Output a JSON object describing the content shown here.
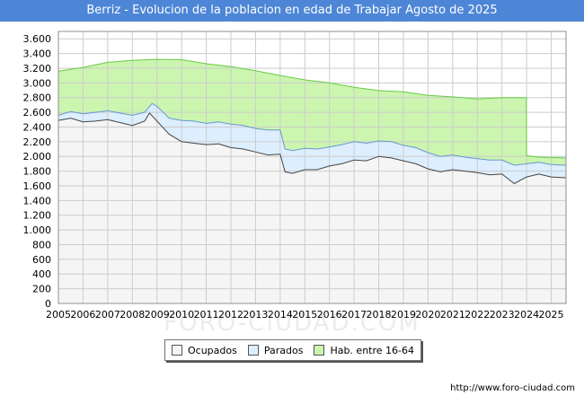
{
  "chart_data": {
    "type": "area",
    "title": "Berriz - Evolucion de la poblacion en edad de Trabajar Agosto de 2025",
    "xlabel": "",
    "ylabel": "",
    "ylim": [
      0,
      3700
    ],
    "grid": true,
    "legend_position": "bottom-center",
    "x_tick_labels": [
      "2005",
      "2006",
      "2007",
      "2008",
      "2009",
      "2010",
      "2011",
      "2012",
      "2013",
      "2014",
      "2015",
      "2016",
      "2017",
      "2018",
      "2019",
      "2020",
      "2021",
      "2022",
      "2023",
      "2024",
      "2025"
    ],
    "y_tick_labels": [
      "0",
      "200",
      "400",
      "600",
      "800",
      "1.000",
      "1.200",
      "1.400",
      "1.600",
      "1.800",
      "2.000",
      "2.200",
      "2.400",
      "2.600",
      "2.800",
      "3.000",
      "3.200",
      "3.400",
      "3.600"
    ],
    "y_ticks": [
      0,
      200,
      400,
      600,
      800,
      1000,
      1200,
      1400,
      1600,
      1800,
      2000,
      2200,
      2400,
      2600,
      2800,
      3000,
      3200,
      3400,
      3600
    ],
    "series": [
      {
        "name": "Hab. entre 16-64",
        "color": "#ccf5b0",
        "line_color": "#66cc44",
        "points": [
          [
            2005.0,
            3160
          ],
          [
            2006.0,
            3210
          ],
          [
            2007.0,
            3280
          ],
          [
            2008.0,
            3305
          ],
          [
            2009.0,
            3320
          ],
          [
            2010.0,
            3315
          ],
          [
            2011.0,
            3260
          ],
          [
            2012.0,
            3220
          ],
          [
            2013.0,
            3165
          ],
          [
            2014.0,
            3100
          ],
          [
            2015.0,
            3040
          ],
          [
            2016.0,
            3000
          ],
          [
            2017.0,
            2940
          ],
          [
            2018.0,
            2895
          ],
          [
            2019.0,
            2880
          ],
          [
            2020.0,
            2830
          ],
          [
            2021.0,
            2810
          ],
          [
            2022.0,
            2780
          ],
          [
            2023.0,
            2800
          ],
          [
            2023.99,
            2800
          ],
          [
            2024.0,
            2010
          ],
          [
            2024.5,
            1990
          ],
          [
            2025.58,
            1980
          ]
        ]
      },
      {
        "name": "Parados",
        "color": "#ddeeff",
        "line_color": "#6699cc",
        "points": [
          [
            2005.0,
            2560
          ],
          [
            2005.5,
            2610
          ],
          [
            2006.0,
            2580
          ],
          [
            2006.5,
            2600
          ],
          [
            2007.0,
            2620
          ],
          [
            2007.5,
            2590
          ],
          [
            2008.0,
            2560
          ],
          [
            2008.5,
            2600
          ],
          [
            2008.8,
            2720
          ],
          [
            2009.0,
            2680
          ],
          [
            2009.5,
            2520
          ],
          [
            2010.0,
            2490
          ],
          [
            2010.5,
            2480
          ],
          [
            2011.0,
            2450
          ],
          [
            2011.5,
            2470
          ],
          [
            2012.0,
            2440
          ],
          [
            2012.5,
            2420
          ],
          [
            2013.0,
            2380
          ],
          [
            2013.5,
            2360
          ],
          [
            2014.0,
            2360
          ],
          [
            2014.2,
            2100
          ],
          [
            2014.5,
            2080
          ],
          [
            2015.0,
            2110
          ],
          [
            2015.5,
            2100
          ],
          [
            2016.0,
            2130
          ],
          [
            2016.5,
            2160
          ],
          [
            2017.0,
            2200
          ],
          [
            2017.5,
            2180
          ],
          [
            2018.0,
            2210
          ],
          [
            2018.5,
            2200
          ],
          [
            2019.0,
            2150
          ],
          [
            2019.5,
            2120
          ],
          [
            2020.0,
            2050
          ],
          [
            2020.5,
            2000
          ],
          [
            2021.0,
            2020
          ],
          [
            2021.5,
            1990
          ],
          [
            2022.0,
            1970
          ],
          [
            2022.5,
            1950
          ],
          [
            2023.0,
            1950
          ],
          [
            2023.5,
            1880
          ],
          [
            2024.0,
            1900
          ],
          [
            2024.5,
            1920
          ],
          [
            2025.0,
            1890
          ],
          [
            2025.58,
            1880
          ]
        ]
      },
      {
        "name": "Ocupados",
        "color": "#f5f5f5",
        "line_color": "#444444",
        "points": [
          [
            2005.0,
            2490
          ],
          [
            2005.5,
            2520
          ],
          [
            2006.0,
            2470
          ],
          [
            2006.5,
            2480
          ],
          [
            2007.0,
            2500
          ],
          [
            2007.5,
            2460
          ],
          [
            2008.0,
            2420
          ],
          [
            2008.5,
            2480
          ],
          [
            2008.7,
            2590
          ],
          [
            2009.0,
            2480
          ],
          [
            2009.5,
            2300
          ],
          [
            2010.0,
            2200
          ],
          [
            2010.5,
            2180
          ],
          [
            2011.0,
            2160
          ],
          [
            2011.5,
            2170
          ],
          [
            2012.0,
            2120
          ],
          [
            2012.5,
            2100
          ],
          [
            2013.0,
            2060
          ],
          [
            2013.5,
            2020
          ],
          [
            2014.0,
            2030
          ],
          [
            2014.2,
            1790
          ],
          [
            2014.5,
            1770
          ],
          [
            2015.0,
            1820
          ],
          [
            2015.5,
            1820
          ],
          [
            2016.0,
            1870
          ],
          [
            2016.5,
            1900
          ],
          [
            2017.0,
            1950
          ],
          [
            2017.5,
            1940
          ],
          [
            2018.0,
            2000
          ],
          [
            2018.5,
            1980
          ],
          [
            2019.0,
            1940
          ],
          [
            2019.5,
            1900
          ],
          [
            2020.0,
            1830
          ],
          [
            2020.5,
            1790
          ],
          [
            2021.0,
            1820
          ],
          [
            2021.5,
            1800
          ],
          [
            2022.0,
            1780
          ],
          [
            2022.5,
            1750
          ],
          [
            2023.0,
            1760
          ],
          [
            2023.5,
            1630
          ],
          [
            2024.0,
            1720
          ],
          [
            2024.5,
            1760
          ],
          [
            2025.0,
            1720
          ],
          [
            2025.58,
            1710
          ]
        ]
      }
    ],
    "legend": [
      "Ocupados",
      "Parados",
      "Hab. entre 16-64"
    ],
    "legend_colors": [
      "#f5f5f5",
      "#ddeeff",
      "#ccf5b0"
    ]
  },
  "source_url": "http://www.foro-ciudad.com",
  "watermark": "FORO-CIUDAD.COM",
  "colors": {
    "title_bg": "#4d86d6",
    "plot_border": "#909090",
    "grid": "#cccccc"
  }
}
